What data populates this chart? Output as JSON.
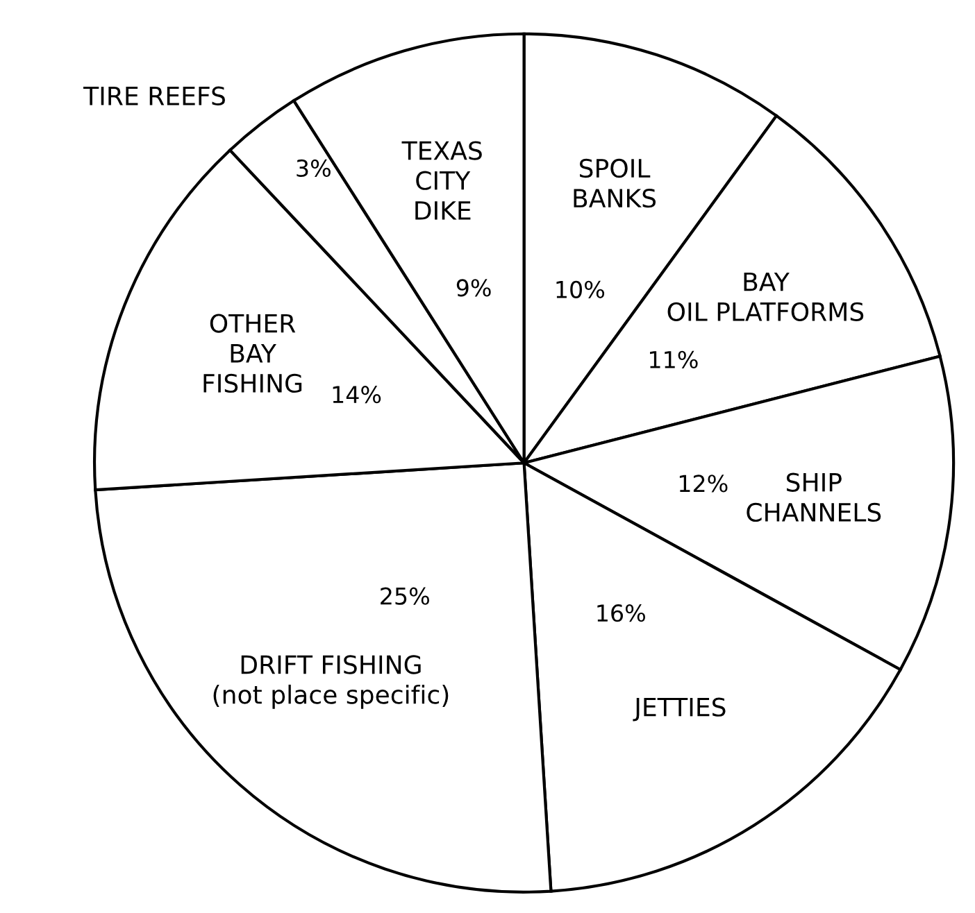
{
  "chart_data": {
    "type": "pie",
    "categories": [
      "SPOIL\nBANKS",
      "BAY\nOIL PLATFORMS",
      "SHIP\nCHANNELS",
      "JETTIES",
      "DRIFT FISHING\n(not place specific)",
      "OTHER\nBAY\nFISHING",
      "TIRE REEFS",
      "TEXAS\nCITY\nDIKE"
    ],
    "values": [
      10,
      11,
      12,
      16,
      25,
      14,
      3,
      9
    ],
    "value_labels": [
      "10%",
      "11%",
      "12%",
      "16%",
      "25%",
      "14%",
      "3%",
      "9%"
    ],
    "colors": [
      "#ffffff",
      "#ffffff",
      "#ffffff",
      "#ffffff",
      "#ffffff",
      "#ffffff",
      "#ffffff",
      "#ffffff"
    ]
  }
}
